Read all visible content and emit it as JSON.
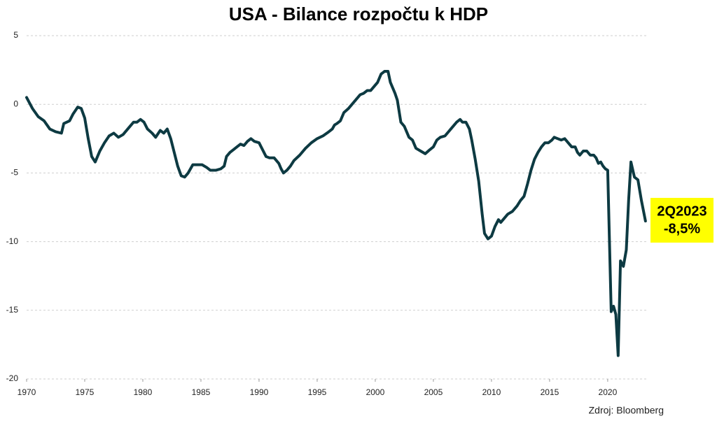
{
  "chart_data": {
    "type": "line",
    "title": "USA - Bilance rozpočtu k HDP",
    "source": "Zdroj: Bloomberg",
    "annotation": [
      "2Q2023",
      "-8,5%"
    ],
    "color": "#0d3a42",
    "grid": true,
    "xlim": [
      1970,
      2023.5
    ],
    "ylim": [
      -20,
      5
    ],
    "xticks": [
      1970,
      1975,
      1980,
      1985,
      1990,
      1995,
      2000,
      2005,
      2010,
      2015,
      2020
    ],
    "yticks": [
      5,
      0,
      -5,
      -10,
      -15,
      -20
    ],
    "x": [
      1970,
      1970.5,
      1971,
      1971.5,
      1972,
      1972.5,
      1973,
      1973.2,
      1973.7,
      1974,
      1974.4,
      1974.7,
      1975,
      1975.3,
      1975.6,
      1975.9,
      1976.3,
      1976.7,
      1977.1,
      1977.5,
      1977.9,
      1978.3,
      1978.8,
      1979.2,
      1979.5,
      1979.8,
      1980.1,
      1980.4,
      1980.8,
      1981.1,
      1981.5,
      1981.8,
      1982.1,
      1982.4,
      1982.7,
      1983,
      1983.3,
      1983.6,
      1983.9,
      1984.3,
      1984.7,
      1985.1,
      1985.5,
      1985.8,
      1986.3,
      1986.7,
      1987,
      1987.2,
      1987.5,
      1987.8,
      1988.1,
      1988.4,
      1988.7,
      1989,
      1989.3,
      1989.6,
      1990,
      1990.3,
      1990.6,
      1990.9,
      1991.3,
      1991.7,
      1991.9,
      1992.1,
      1992.4,
      1992.7,
      1993,
      1993.5,
      1994,
      1994.5,
      1995,
      1995.5,
      1996,
      1996.3,
      1996.5,
      1996.7,
      1997,
      1997.3,
      1997.7,
      1998,
      1998.4,
      1998.7,
      1999,
      1999.3,
      1999.6,
      1999.9,
      2000.2,
      2000.5,
      2000.8,
      2001.1,
      2001.3,
      2001.7,
      2001.9,
      2002.2,
      2002.5,
      2002.9,
      2003.2,
      2003.5,
      2003.9,
      2004.3,
      2004.7,
      2005,
      2005.3,
      2005.6,
      2006,
      2006.3,
      2006.6,
      2007,
      2007.3,
      2007.5,
      2007.8,
      2008.1,
      2008.3,
      2008.6,
      2008.9,
      2009.2,
      2009.4,
      2009.7,
      2010,
      2010.3,
      2010.6,
      2010.8,
      2011.1,
      2011.4,
      2011.8,
      2012.2,
      2012.5,
      2012.8,
      2013.1,
      2013.4,
      2013.7,
      2014,
      2014.3,
      2014.6,
      2014.9,
      2015.2,
      2015.4,
      2015.7,
      2016,
      2016.3,
      2016.6,
      2016.9,
      2017.2,
      2017.4,
      2017.6,
      2017.9,
      2018.2,
      2018.5,
      2018.8,
      2019,
      2019.2,
      2019.4,
      2019.6,
      2019.8,
      2020,
      2020.3,
      2020.5,
      2020.7,
      2020.9,
      2021.1,
      2021.35,
      2021.6,
      2021.8,
      2022,
      2022.3,
      2022.6,
      2022.9,
      2023.25
    ],
    "values": [
      0.5,
      -0.3,
      -0.9,
      -1.2,
      -1.8,
      -2.0,
      -2.1,
      -1.4,
      -1.2,
      -0.7,
      -0.2,
      -0.3,
      -1.0,
      -2.5,
      -3.8,
      -4.2,
      -3.4,
      -2.8,
      -2.3,
      -2.1,
      -2.4,
      -2.2,
      -1.7,
      -1.3,
      -1.3,
      -1.1,
      -1.3,
      -1.8,
      -2.1,
      -2.4,
      -1.9,
      -2.1,
      -1.8,
      -2.5,
      -3.5,
      -4.5,
      -5.2,
      -5.3,
      -5.0,
      -4.4,
      -4.4,
      -4.4,
      -4.6,
      -4.8,
      -4.8,
      -4.7,
      -4.5,
      -3.8,
      -3.5,
      -3.3,
      -3.1,
      -2.9,
      -3.0,
      -2.7,
      -2.5,
      -2.7,
      -2.8,
      -3.3,
      -3.8,
      -3.9,
      -3.9,
      -4.3,
      -4.7,
      -5.0,
      -4.8,
      -4.5,
      -4.1,
      -3.7,
      -3.2,
      -2.8,
      -2.5,
      -2.3,
      -2.0,
      -1.8,
      -1.5,
      -1.4,
      -1.2,
      -0.6,
      -0.3,
      0.0,
      0.4,
      0.7,
      0.8,
      1.0,
      1.0,
      1.3,
      1.6,
      2.2,
      2.4,
      2.4,
      1.6,
      0.8,
      0.3,
      -1.3,
      -1.6,
      -2.4,
      -2.6,
      -3.2,
      -3.4,
      -3.6,
      -3.3,
      -3.1,
      -2.6,
      -2.4,
      -2.3,
      -2.0,
      -1.7,
      -1.3,
      -1.1,
      -1.3,
      -1.3,
      -1.8,
      -2.6,
      -4.0,
      -5.6,
      -8.0,
      -9.4,
      -9.8,
      -9.6,
      -8.9,
      -8.4,
      -8.6,
      -8.3,
      -8.0,
      -7.8,
      -7.4,
      -7.0,
      -6.7,
      -5.8,
      -4.8,
      -4.0,
      -3.5,
      -3.1,
      -2.8,
      -2.8,
      -2.6,
      -2.4,
      -2.5,
      -2.6,
      -2.5,
      -2.8,
      -3.1,
      -3.1,
      -3.5,
      -3.7,
      -3.4,
      -3.4,
      -3.7,
      -3.7,
      -3.9,
      -4.3,
      -4.2,
      -4.5,
      -4.7,
      -4.8,
      -15.1,
      -14.7,
      -15.3,
      -18.3,
      -11.4,
      -11.8,
      -10.6,
      -7.0,
      -4.2,
      -5.3,
      -5.5,
      -7.0,
      -8.5
    ]
  }
}
